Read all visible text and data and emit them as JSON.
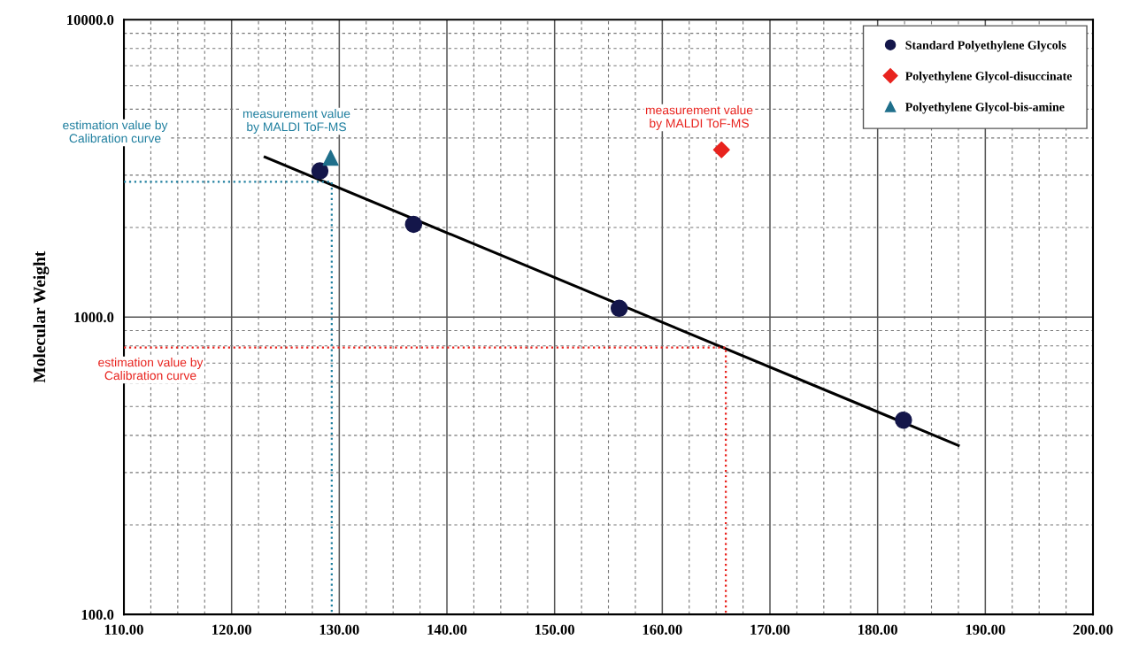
{
  "chart_data": {
    "type": "scatter",
    "ylabel": "Molecular Weight",
    "log": "y",
    "xlim": [
      110,
      200
    ],
    "xticks": [
      {
        "value": 110,
        "label": "110.00"
      },
      {
        "value": 120,
        "label": "120.00"
      },
      {
        "value": 130,
        "label": "130.00"
      },
      {
        "value": 140,
        "label": "140.00"
      },
      {
        "value": 150,
        "label": "150.00"
      },
      {
        "value": 160,
        "label": "160.00"
      },
      {
        "value": 170,
        "label": "170.00"
      },
      {
        "value": 180,
        "label": "180.00"
      },
      {
        "value": 190,
        "label": "190.00"
      },
      {
        "value": 200,
        "label": "200.00"
      }
    ],
    "ylim": [
      100,
      10000
    ],
    "yticks": [
      {
        "value": 100,
        "label": "100.0"
      },
      {
        "value": 1000,
        "label": "1000.0"
      },
      {
        "value": 10000,
        "label": "10000.0"
      }
    ],
    "grid": true,
    "legend": "top right",
    "series": [
      {
        "type": "line",
        "color": "#000000",
        "marker": "none",
        "line_style": "solid",
        "x": [
          123.1,
          187.5
        ],
        "values": [
          3450,
          370
        ]
      },
      {
        "type": "line",
        "color": "#e8231e",
        "marker": "none",
        "line_style": "dotted",
        "x": [
          110,
          165.9,
          165.9
        ],
        "values": [
          790,
          790,
          100
        ]
      },
      {
        "type": "line",
        "color": "#1f7f9f",
        "marker": "none",
        "line_style": "dotted",
        "x": [
          110,
          129.3,
          129.3
        ],
        "values": [
          2850,
          2850,
          100
        ]
      },
      {
        "name": "Standard Polyethylene Glycols",
        "color": "#14164a",
        "marker": "circle",
        "x": [
          128.2,
          136.9,
          156.0,
          182.4
        ],
        "values": [
          3100,
          2050,
          1070,
          450
        ]
      },
      {
        "name": "Polyethylene Glycol-disuccinate",
        "color": "#e8231e",
        "marker": "diamond",
        "x": [
          165.5
        ],
        "values": [
          3650
        ]
      },
      {
        "name": "Polyethylene Glycol-bis-amine",
        "color": "#1f6f8b",
        "marker": "triangle",
        "x": [
          129.2
        ],
        "values": [
          3430
        ]
      }
    ],
    "annotations": [
      "measurement value\nby MALDI ToF-MS",
      "estimation value by\nCalibration curve",
      "measurement value\nby MALDI ToF-MS",
      "estimation value by\nCalibration curve"
    ]
  }
}
